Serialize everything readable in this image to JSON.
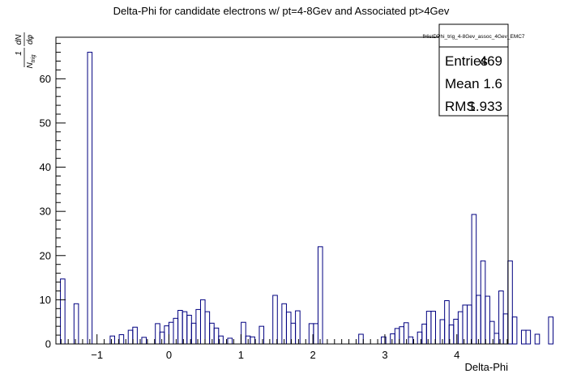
{
  "chart_data": {
    "type": "bar",
    "title": "Delta-Phi for candidate electrons w/ pt=4-8Gev and Associated pt>4Gev",
    "xlabel": "Delta-Phi",
    "ylabel_parts": {
      "num1": "1",
      "den1": "N",
      "den1_sub": "trig",
      "num2": "dN",
      "den2": "dφ"
    },
    "xlim": [
      -1.571,
      4.712
    ],
    "ylim": [
      0,
      69.4
    ],
    "x_ticks": [
      -1,
      0,
      1,
      2,
      3,
      4
    ],
    "x_tick_labels": [
      "−1",
      "0",
      "1",
      "2",
      "3",
      "4"
    ],
    "y_ticks": [
      0,
      10,
      20,
      30,
      40,
      50,
      60
    ],
    "y_tick_labels": [
      "0",
      "10",
      "20",
      "30",
      "40",
      "50",
      "60"
    ],
    "bin_width": 0.0628,
    "values": [
      0,
      14.7,
      0,
      0,
      9.1,
      0,
      0,
      66,
      0,
      0,
      0,
      0,
      1.8,
      0,
      2.1,
      0,
      3.1,
      3.8,
      0,
      1.5,
      0,
      0,
      4.6,
      2.7,
      4.1,
      4.9,
      5.8,
      7.6,
      7.3,
      6.5,
      4.7,
      7.8,
      10,
      7.3,
      4.7,
      3.6,
      1.8,
      0,
      1.3,
      0,
      0,
      4.9,
      1.8,
      1.6,
      0,
      4,
      0,
      0,
      11,
      0,
      9.1,
      7.2,
      4.7,
      7.5,
      0,
      0,
      4.6,
      4.6,
      22,
      0,
      0,
      0,
      0,
      0,
      0,
      0,
      0,
      2.2,
      0,
      0,
      0,
      0,
      1.6,
      0,
      2.3,
      3.5,
      3.9,
      4.8,
      1.6,
      0,
      2.7,
      4.5,
      7.4,
      7.4,
      0,
      5.5,
      9.8,
      4.3,
      5.6,
      7.3,
      8.8,
      8.8,
      29.3,
      11,
      18.8,
      10.8,
      5.1,
      2.4,
      12,
      6.8,
      18.8,
      6.1,
      0,
      3.1,
      3.1,
      0,
      2.2,
      0,
      0,
      6.1,
      0,
      0,
      0,
      0,
      5.9,
      0,
      0,
      0,
      7.5,
      7.5,
      0,
      0,
      0,
      0,
      0,
      0,
      0,
      0,
      0,
      0,
      0,
      0
    ],
    "bar_values": [
      14.7,
      9.1,
      66,
      1.8,
      2.1,
      3.1,
      3.8,
      1.5,
      4.6,
      2.7,
      4.1,
      4.9,
      5.8,
      7.6,
      7.3,
      6.5,
      4.7,
      7.8,
      10,
      7.3,
      4.7,
      3.6,
      1.8,
      1.3,
      4.9,
      1.8,
      1.6,
      4,
      11,
      9.1,
      7.2,
      4.7,
      7.5,
      4.6,
      4.6,
      22,
      2.2,
      1.6,
      2.3,
      3.5,
      3.9,
      4.8,
      1.6,
      2.7,
      4.5,
      7.4,
      7.4,
      5.5,
      9.8,
      4.3,
      5.6,
      7.3,
      8.8,
      8.8,
      29.3,
      11,
      18.8,
      10.8,
      5.1,
      2.4,
      12,
      6.8,
      18.8,
      6.1,
      3.1,
      3.1,
      2.2,
      6.1,
      5.9,
      7.5,
      7.5
    ],
    "line_color": "#000080",
    "legend_placement": "top-right",
    "grid": false
  },
  "stats": {
    "name": "fHistDPhi_trig_4-8Gev_assoc_4Gev_EMC7",
    "rows": [
      {
        "label": "Entries",
        "value": "469"
      },
      {
        "label": "Mean",
        "value": "1.6"
      },
      {
        "label": "RMS",
        "value": "1.933"
      }
    ]
  }
}
